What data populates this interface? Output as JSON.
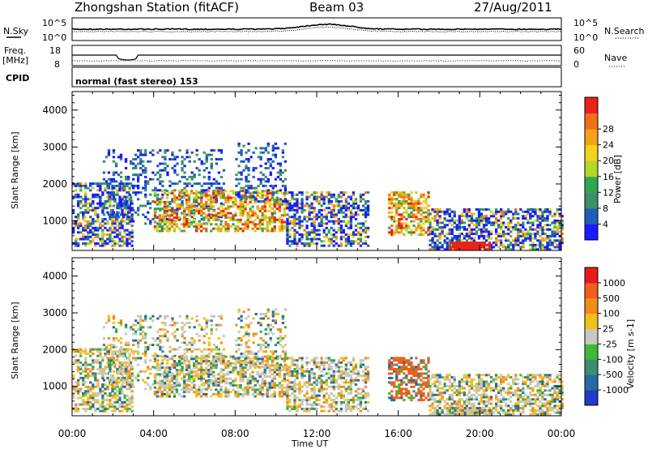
{
  "header": {
    "title": "Zhongshan Station (fitACF)",
    "beam": "Beam 03",
    "date": "27/Aug/2011"
  },
  "strips": {
    "nsky_label": "N.Sky",
    "nsearch_label": "N.Search",
    "nsky_scale_top": "10^5",
    "nsky_scale_bot": "10^0",
    "freq_label": "Freq.",
    "freq_unit": "[MHz]",
    "freq_top": "18",
    "freq_bot": "8",
    "nave_label": "Nave",
    "nave_top": "60",
    "nave_bot": "0",
    "cpid_label": "CPID",
    "cpid_value": "normal (fast stereo) 153"
  },
  "chart_data": [
    {
      "type": "heatmap",
      "quantity": "power",
      "ylabel": "Slant Range [km]",
      "xlabel": "Time UT",
      "ylim": [
        200,
        4500
      ],
      "xlim": [
        0,
        24
      ],
      "y_ticks": [
        "1000",
        "2000",
        "3000",
        "4000"
      ],
      "x_ticks": [
        "00:00",
        "04:00",
        "08:00",
        "12:00",
        "16:00",
        "20:00",
        "00:00"
      ],
      "colorbar": {
        "label": "Power [dB]",
        "ticks": [
          "4",
          "8",
          "12",
          "16",
          "20",
          "24",
          "28"
        ],
        "colors": [
          "#1a1aff",
          "#1f5fb8",
          "#3f8f6a",
          "#2ea84f",
          "#b7d628",
          "#f2d21a",
          "#f6a11a",
          "#f0701a",
          "#e8231a"
        ]
      },
      "echo_regions": [
        {
          "t0": 0.0,
          "t1": 3.0,
          "r0": 300,
          "r1": 2000,
          "level": "mixed"
        },
        {
          "t0": 1.5,
          "t1": 7.5,
          "r0": 900,
          "r1": 2900,
          "level": "weak"
        },
        {
          "t0": 4.0,
          "t1": 10.5,
          "r0": 700,
          "r1": 1800,
          "level": "strong"
        },
        {
          "t0": 8.0,
          "t1": 10.5,
          "r0": 1500,
          "r1": 3100,
          "level": "weak"
        },
        {
          "t0": 10.5,
          "t1": 14.5,
          "r0": 300,
          "r1": 1800,
          "level": "mixed"
        },
        {
          "t0": 15.5,
          "t1": 17.5,
          "r0": 600,
          "r1": 1800,
          "level": "strong"
        },
        {
          "t0": 17.5,
          "t1": 24.0,
          "r0": 200,
          "r1": 1300,
          "level": "mixed"
        },
        {
          "t0": 18.5,
          "t1": 20.5,
          "r0": 200,
          "r1": 400,
          "level": "very-strong"
        }
      ]
    },
    {
      "type": "heatmap",
      "quantity": "velocity",
      "ylabel": "Slant Range [km]",
      "xlabel": "Time UT",
      "ylim": [
        200,
        4500
      ],
      "xlim": [
        0,
        24
      ],
      "y_ticks": [
        "1000",
        "2000",
        "3000",
        "4000"
      ],
      "x_ticks": [
        "00:00",
        "04:00",
        "08:00",
        "12:00",
        "16:00",
        "20:00",
        "00:00"
      ],
      "colorbar": {
        "label": "Velocity [m s-1]",
        "ticks": [
          "1000",
          "500",
          "100",
          "25",
          "-25",
          "-100",
          "-500",
          "-1000"
        ],
        "colors": [
          "#1e3cc8",
          "#2a6aa0",
          "#3a8f70",
          "#3fb83a",
          "#c8c8c0",
          "#f2c01a",
          "#f28c1a",
          "#f0601a",
          "#e81a1a"
        ]
      }
    }
  ]
}
